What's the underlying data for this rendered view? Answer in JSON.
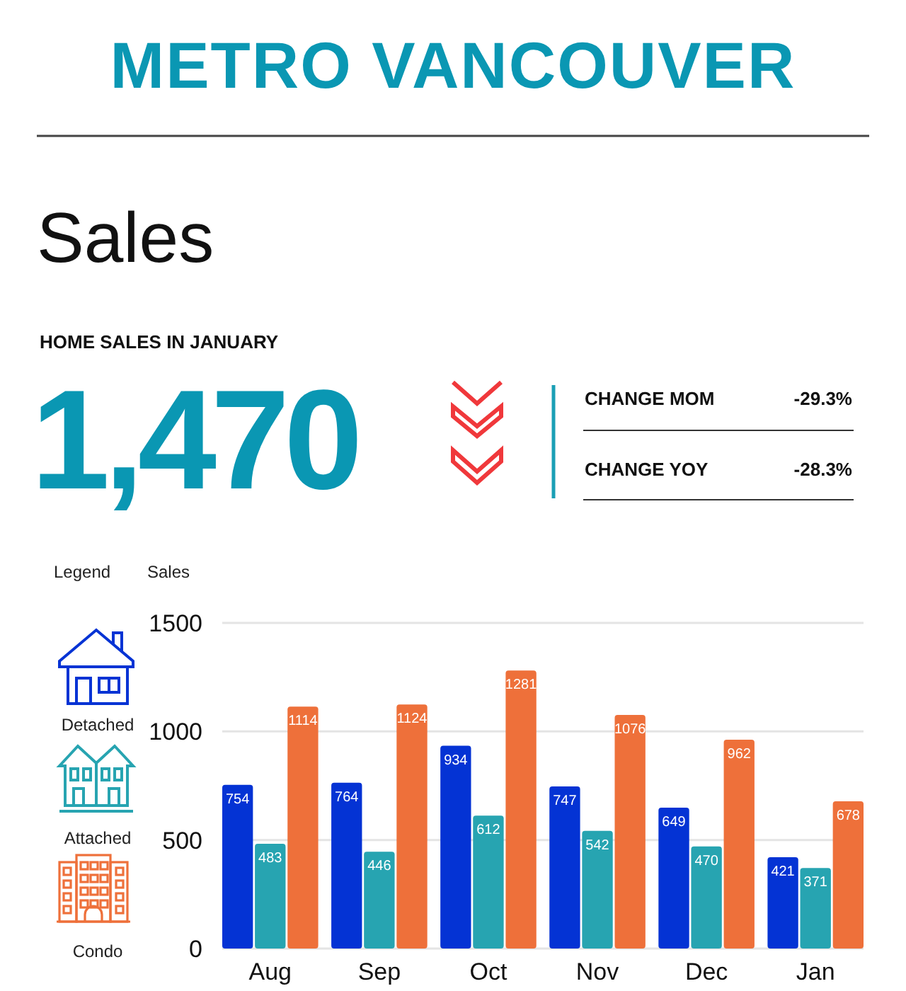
{
  "chart_data": {
    "type": "bar",
    "title": "METRO VANCOUVER",
    "subtitle": "Sales",
    "annotations": [
      "HOME SALES IN JANUARY",
      "1,470",
      "CHANGE MOM",
      "-29.3%",
      "CHANGE YOY",
      "-28.3%"
    ],
    "ylabel": "Sales",
    "legend_title": "Legend",
    "legend": "left",
    "categories": [
      "Aug",
      "Sep",
      "Oct",
      "Nov",
      "Dec",
      "Jan"
    ],
    "series": [
      {
        "name": "Detached",
        "color": "#0433d4",
        "values": [
          754,
          764,
          934,
          747,
          649,
          421
        ]
      },
      {
        "name": "Attached",
        "color": "#27a4b1",
        "values": [
          483,
          446,
          612,
          542,
          470,
          371
        ]
      },
      {
        "name": "Condo",
        "color": "#ee703a",
        "values": [
          1114,
          1124,
          1281,
          1076,
          962,
          678
        ]
      }
    ],
    "ylim": [
      0,
      1500
    ],
    "yticks": [
      0,
      500,
      1000,
      1500
    ],
    "grid": "y",
    "data_labels": true
  }
}
